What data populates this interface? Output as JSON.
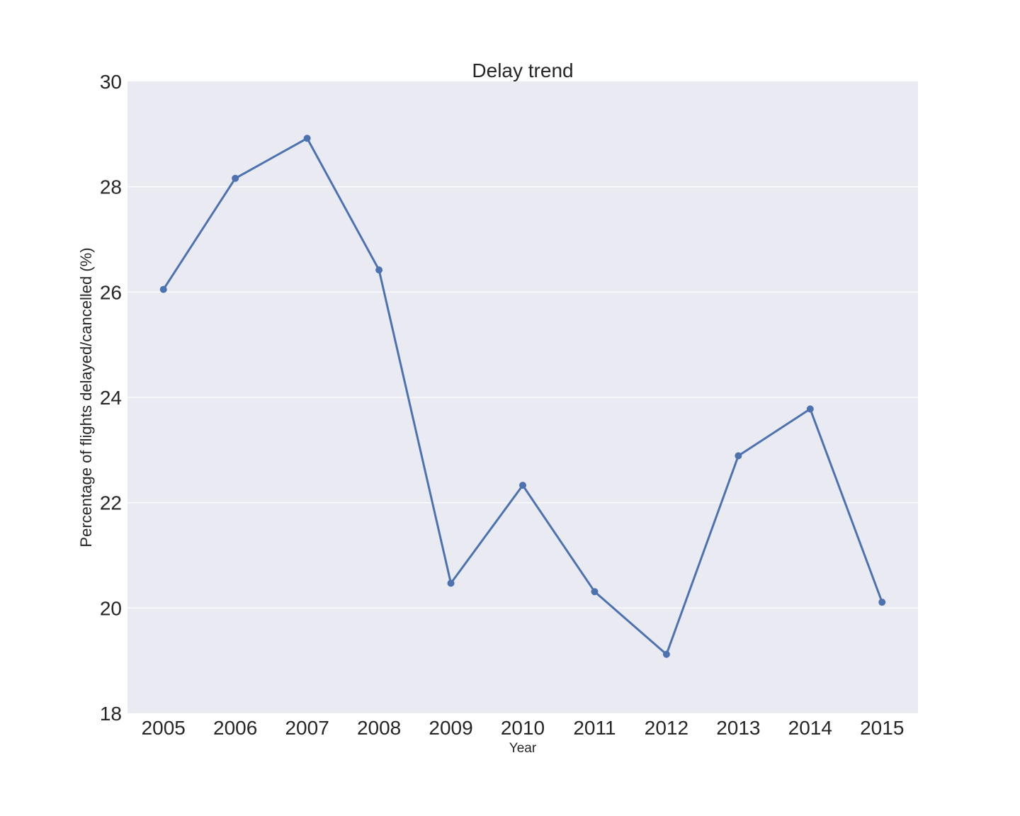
{
  "chart_data": {
    "type": "line",
    "title": "Delay trend",
    "xlabel": "Year",
    "ylabel": "Percentage of flights delayed/cancelled (%)",
    "categories": [
      "2005",
      "2006",
      "2007",
      "2008",
      "2009",
      "2010",
      "2011",
      "2012",
      "2013",
      "2014",
      "2015"
    ],
    "series": [
      {
        "values": [
          26.05,
          28.16,
          28.92,
          26.42,
          20.47,
          22.33,
          20.31,
          19.12,
          22.89,
          23.78,
          20.11
        ]
      }
    ],
    "ylim": [
      18,
      30
    ],
    "yticks": [
      18,
      20,
      22,
      24,
      26,
      28,
      30
    ],
    "grid": true,
    "colors": {
      "line": "#4c72b0",
      "plot_background": "#eaeaf2",
      "grid": "#ffffff",
      "text": "#262626"
    }
  }
}
